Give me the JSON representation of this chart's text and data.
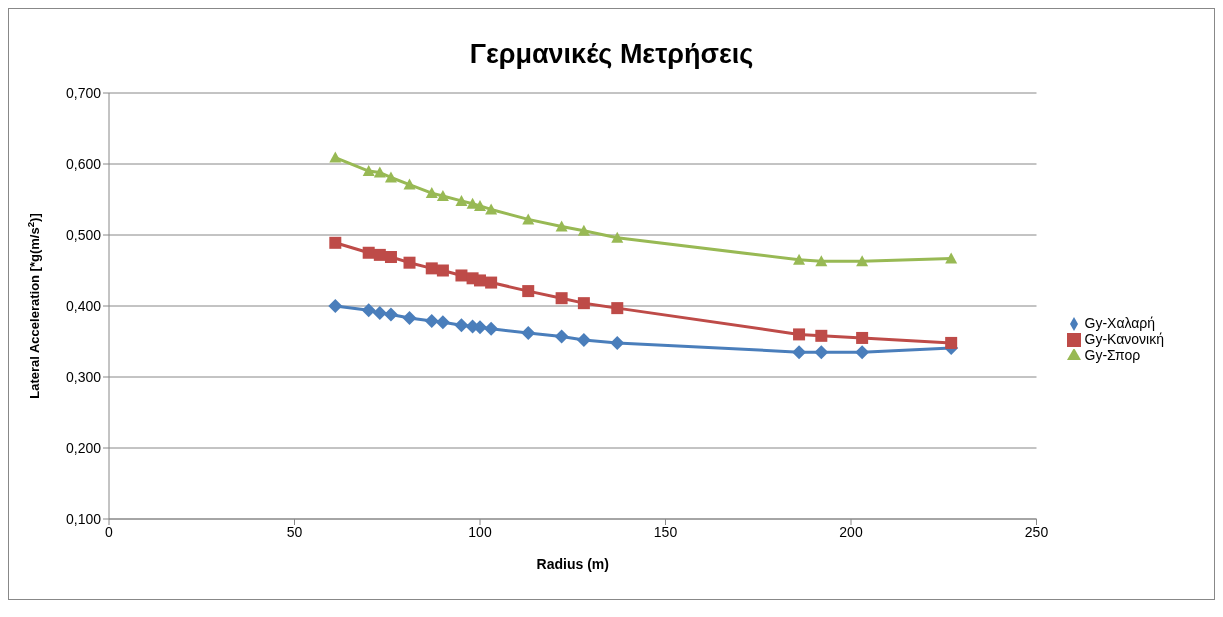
{
  "chart_data": {
    "type": "line",
    "title": "Γερμανικές Μετρήσεις",
    "xlabel": "Radius (m)",
    "ylabel": "Lateral Acceleration [*g(m/s$^{2}$)]",
    "x": [
      61,
      70,
      73,
      76,
      81,
      87,
      90,
      95,
      98,
      100,
      103,
      113,
      122,
      128,
      137,
      186,
      192,
      203,
      227
    ],
    "series": [
      {
        "name": "Gy-Χαλαρή",
        "color": "#4a7ebb",
        "marker": "diamond",
        "values": [
          0.4,
          0.394,
          0.39,
          0.388,
          0.383,
          0.379,
          0.377,
          0.373,
          0.371,
          0.37,
          0.368,
          0.362,
          0.357,
          0.352,
          0.348,
          0.335,
          0.335,
          0.335,
          0.341
        ]
      },
      {
        "name": "Gy-Κανονική",
        "color": "#be4b48",
        "marker": "square",
        "values": [
          0.489,
          0.475,
          0.472,
          0.469,
          0.461,
          0.453,
          0.45,
          0.443,
          0.439,
          0.436,
          0.433,
          0.421,
          0.411,
          0.404,
          0.397,
          0.36,
          0.358,
          0.355,
          0.348
        ]
      },
      {
        "name": "Gy-Σπορ",
        "color": "#98b954",
        "marker": "triangle",
        "values": [
          0.609,
          0.59,
          0.588,
          0.581,
          0.571,
          0.559,
          0.555,
          0.548,
          0.544,
          0.541,
          0.536,
          0.522,
          0.512,
          0.506,
          0.496,
          0.465,
          0.463,
          0.463,
          0.467
        ]
      }
    ],
    "xlim": [
      0,
      250
    ],
    "xticks": [
      0,
      50,
      100,
      150,
      200,
      250
    ],
    "ylim": [
      0.1,
      0.7
    ],
    "yticks": [
      {
        "value": 0.1,
        "label": "0,100"
      },
      {
        "value": 0.2,
        "label": "0,200"
      },
      {
        "value": 0.3,
        "label": "0,300"
      },
      {
        "value": 0.4,
        "label": "0,400"
      },
      {
        "value": 0.5,
        "label": "0,500"
      },
      {
        "value": 0.6,
        "label": "0,600"
      },
      {
        "value": 0.7,
        "label": "0,700"
      }
    ],
    "grid": "y",
    "legend": "right",
    "line_style": "solid"
  }
}
